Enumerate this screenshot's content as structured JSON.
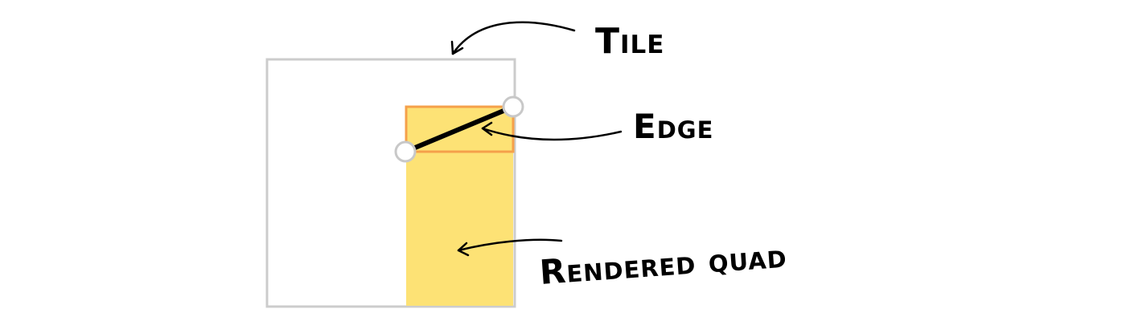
{
  "labels": {
    "tile": "Tile",
    "edge": "Edge",
    "quad": "Rendered quad"
  },
  "colors": {
    "tile_border": "#cccccc",
    "quad_fill": "#fde275",
    "edge_box_border": "#f5a04a",
    "edge_line": "#000000",
    "vertex_fill": "#ffffff",
    "vertex_stroke": "#c8c8c8",
    "arrow": "#000000"
  }
}
